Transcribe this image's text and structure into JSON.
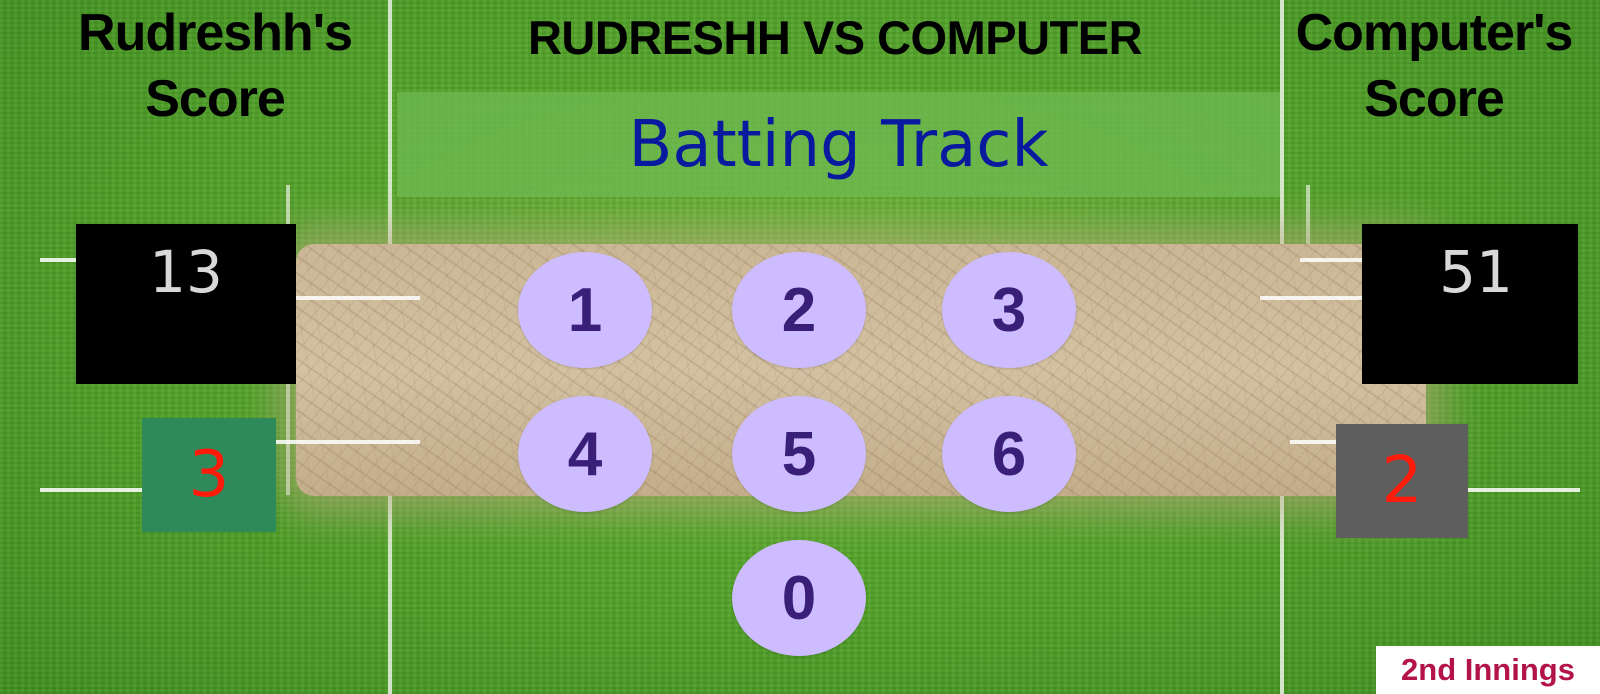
{
  "header": {
    "player_heading": "Rudreshh's Score",
    "match_title": "RUDRESHH VS COMPUTER",
    "computer_heading": "Computer's Score"
  },
  "track": {
    "label": "Batting Track"
  },
  "player": {
    "score": "13",
    "wickets": "3"
  },
  "computer": {
    "score": "51",
    "wickets": "2"
  },
  "run_buttons": [
    {
      "label": "1"
    },
    {
      "label": "2"
    },
    {
      "label": "3"
    },
    {
      "label": "4"
    },
    {
      "label": "5"
    },
    {
      "label": "6"
    },
    {
      "label": "0"
    }
  ],
  "innings": {
    "label": "2nd Innings"
  },
  "colors": {
    "button_fill": "#cdbcff",
    "button_text": "#3a1f78",
    "track_label": "#0a1a9e",
    "wicket_text": "#ff1a0a",
    "innings_text": "#b3134a"
  }
}
